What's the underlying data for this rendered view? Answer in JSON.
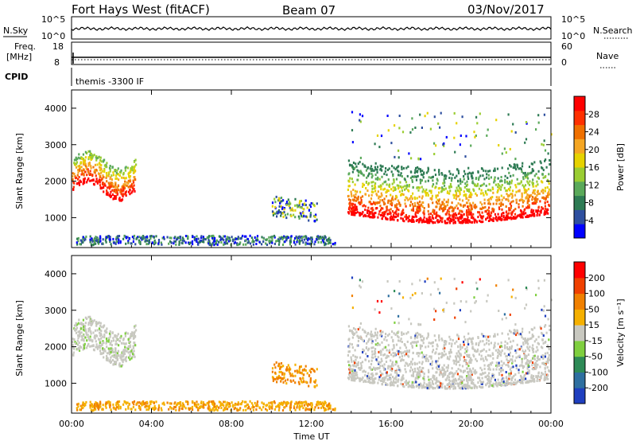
{
  "header": {
    "title": "Fort Hays West (fitACF)",
    "beam": "Beam 07",
    "date": "03/Nov/2017"
  },
  "panels": {
    "nsky": {
      "label": "N.Sky",
      "y_low": "10^0",
      "y_high": "10^5",
      "right_label": "N.Search",
      "right_low": "10^0",
      "right_high": "10^5"
    },
    "freq": {
      "label_top": "Freq.",
      "label_bottom": "[MHz]",
      "y_low": "8",
      "y_high": "18",
      "right_label": "Nave",
      "right_low": "0",
      "right_high": "60"
    },
    "cpid": {
      "label": "CPID",
      "value": "themis -3300 IF"
    }
  },
  "chart_data": [
    {
      "type": "heatmap",
      "name": "power",
      "ylabel": "Slant Range [km]",
      "xlabel": "Time UT",
      "x_ticks": [
        "00:00",
        "04:00",
        "08:00",
        "12:00",
        "16:00",
        "20:00",
        "00:00"
      ],
      "y_ticks": [
        1000,
        2000,
        3000,
        4000
      ],
      "ylim": [
        180,
        4500
      ],
      "colorbar": {
        "label": "Power [dB]",
        "ticks": [
          "4",
          "8",
          "12",
          "16",
          "20",
          "24",
          "28"
        ],
        "colors": [
          "#0000ff",
          "#2e4f9f",
          "#2e7b54",
          "#5aa95a",
          "#9acd32",
          "#e6d200",
          "#f5a623",
          "#f07000",
          "#ff3000",
          "#ff0000"
        ]
      }
    },
    {
      "type": "heatmap",
      "name": "velocity",
      "ylabel": "Slant Range [km]",
      "xlabel": "Time UT",
      "x_ticks": [
        "00:00",
        "04:00",
        "08:00",
        "12:00",
        "16:00",
        "20:00",
        "00:00"
      ],
      "y_ticks": [
        1000,
        2000,
        3000,
        4000
      ],
      "ylim": [
        180,
        4500
      ],
      "colorbar": {
        "label": "Velocity [m s⁻¹]",
        "ticks": [
          "200",
          "100",
          "50",
          "15",
          "-15",
          "-50",
          "-100",
          "-200"
        ],
        "colors": [
          "#1f3fbf",
          "#2e6fa0",
          "#2e8b57",
          "#7fcf3f",
          "#c8c8c0",
          "#f5b000",
          "#f08000",
          "#f04000",
          "#ff0000"
        ]
      }
    }
  ],
  "x_axis_label": "Time UT",
  "x_tick_labels": [
    "00:00",
    "04:00",
    "08:00",
    "12:00",
    "16:00",
    "20:00",
    "00:00"
  ]
}
